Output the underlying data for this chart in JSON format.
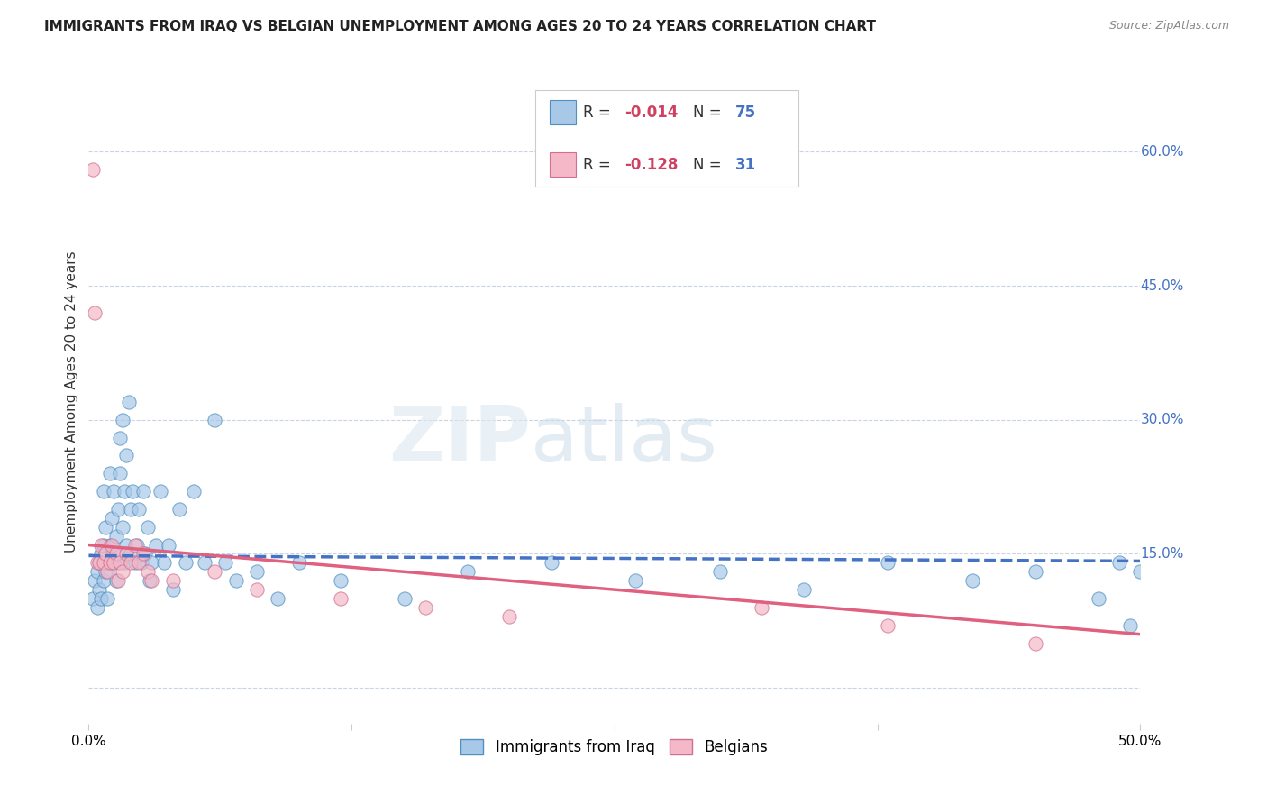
{
  "title": "IMMIGRANTS FROM IRAQ VS BELGIAN UNEMPLOYMENT AMONG AGES 20 TO 24 YEARS CORRELATION CHART",
  "source": "Source: ZipAtlas.com",
  "ylabel": "Unemployment Among Ages 20 to 24 years",
  "right_yticks": [
    0.0,
    0.15,
    0.3,
    0.45,
    0.6
  ],
  "right_yticklabels": [
    "",
    "15.0%",
    "30.0%",
    "45.0%",
    "60.0%"
  ],
  "xlim": [
    0.0,
    0.5
  ],
  "ylim": [
    -0.04,
    0.68
  ],
  "series1_name": "Immigrants from Iraq",
  "series1_color": "#a8c8e8",
  "series1_edge": "#5090c0",
  "series2_name": "Belgians",
  "series2_color": "#f4b8c8",
  "series2_edge": "#d07090",
  "trend1_color": "#4472c4",
  "trend2_color": "#e06080",
  "watermark_zip": "ZIP",
  "watermark_atlas": "atlas",
  "background_color": "#ffffff",
  "grid_color": "#c8d4e4",
  "legend_R_color": "#d04060",
  "legend_N_color": "#4472c4",
  "iraq_x": [
    0.002,
    0.003,
    0.004,
    0.004,
    0.005,
    0.005,
    0.006,
    0.006,
    0.007,
    0.007,
    0.007,
    0.008,
    0.008,
    0.009,
    0.009,
    0.01,
    0.01,
    0.011,
    0.011,
    0.012,
    0.012,
    0.013,
    0.013,
    0.014,
    0.014,
    0.015,
    0.015,
    0.016,
    0.016,
    0.017,
    0.017,
    0.018,
    0.018,
    0.019,
    0.02,
    0.02,
    0.021,
    0.022,
    0.023,
    0.024,
    0.025,
    0.026,
    0.027,
    0.028,
    0.029,
    0.03,
    0.032,
    0.034,
    0.036,
    0.038,
    0.04,
    0.043,
    0.046,
    0.05,
    0.055,
    0.06,
    0.065,
    0.07,
    0.08,
    0.09,
    0.1,
    0.12,
    0.15,
    0.18,
    0.22,
    0.26,
    0.3,
    0.34,
    0.38,
    0.42,
    0.45,
    0.48,
    0.49,
    0.495,
    0.5
  ],
  "iraq_y": [
    0.1,
    0.12,
    0.09,
    0.13,
    0.11,
    0.14,
    0.1,
    0.15,
    0.12,
    0.16,
    0.22,
    0.13,
    0.18,
    0.1,
    0.14,
    0.16,
    0.24,
    0.14,
    0.19,
    0.15,
    0.22,
    0.12,
    0.17,
    0.14,
    0.2,
    0.24,
    0.28,
    0.18,
    0.3,
    0.14,
    0.22,
    0.16,
    0.26,
    0.32,
    0.15,
    0.2,
    0.22,
    0.14,
    0.16,
    0.2,
    0.14,
    0.22,
    0.15,
    0.18,
    0.12,
    0.14,
    0.16,
    0.22,
    0.14,
    0.16,
    0.11,
    0.2,
    0.14,
    0.22,
    0.14,
    0.3,
    0.14,
    0.12,
    0.13,
    0.1,
    0.14,
    0.12,
    0.1,
    0.13,
    0.14,
    0.12,
    0.13,
    0.11,
    0.14,
    0.12,
    0.13,
    0.1,
    0.14,
    0.07,
    0.13
  ],
  "belgian_x": [
    0.002,
    0.003,
    0.004,
    0.005,
    0.006,
    0.007,
    0.008,
    0.009,
    0.01,
    0.011,
    0.012,
    0.013,
    0.014,
    0.015,
    0.016,
    0.018,
    0.02,
    0.022,
    0.024,
    0.026,
    0.028,
    0.03,
    0.04,
    0.06,
    0.08,
    0.12,
    0.16,
    0.2,
    0.32,
    0.38,
    0.45
  ],
  "belgian_y": [
    0.58,
    0.42,
    0.14,
    0.14,
    0.16,
    0.14,
    0.15,
    0.13,
    0.14,
    0.16,
    0.14,
    0.15,
    0.12,
    0.14,
    0.13,
    0.15,
    0.14,
    0.16,
    0.14,
    0.15,
    0.13,
    0.12,
    0.12,
    0.13,
    0.11,
    0.1,
    0.09,
    0.08,
    0.09,
    0.07,
    0.05
  ]
}
